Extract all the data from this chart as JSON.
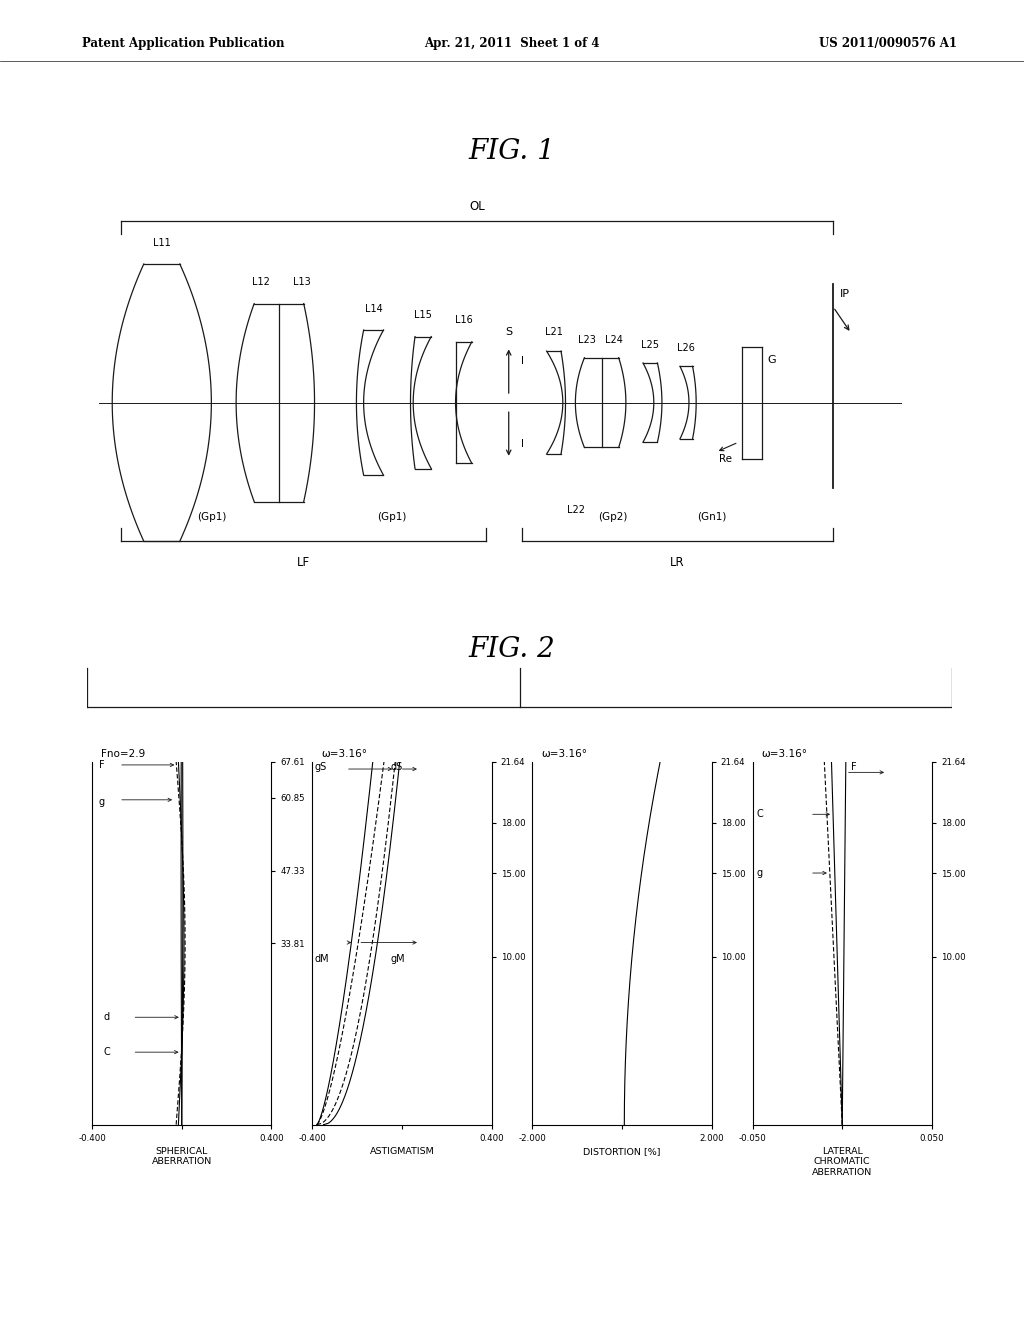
{
  "background_color": "#ffffff",
  "header_left": "Patent Application Publication",
  "header_center": "Apr. 21, 2011  Sheet 1 of 4",
  "header_right": "US 2011/0090576 A1",
  "fig1_title": "FIG. 1",
  "fig2_title": "FIG. 2",
  "plot1": {
    "title": "Fno=2.9",
    "xlim": [
      -0.4,
      0.4
    ],
    "ylim": [
      0,
      67.61
    ],
    "xlabel": "SPHERICAL\nABERRATION",
    "yticks": [
      33.81,
      47.33,
      60.85,
      67.61
    ]
  },
  "plot2": {
    "title": "ω=3.16°",
    "xlim": [
      -0.4,
      0.4
    ],
    "ylim": [
      0,
      21.64
    ],
    "xlabel": "ASTIGMATISM",
    "yticks": [
      10.0,
      15.0,
      18.0,
      21.64
    ]
  },
  "plot3": {
    "title": "ω=3.16°",
    "xlim": [
      -2.0,
      2.0
    ],
    "ylim": [
      0,
      21.64
    ],
    "xlabel": "DISTORTION [%]",
    "yticks": [
      10.0,
      15.0,
      18.0,
      21.64
    ]
  },
  "plot4": {
    "title": "ω=3.16°",
    "xlim": [
      -0.05,
      0.05
    ],
    "ylim": [
      0,
      21.64
    ],
    "xlabel": "LATERAL\nCHROMATIC\nABERRATION",
    "yticks": [
      10.0,
      15.0,
      18.0,
      21.64
    ]
  }
}
